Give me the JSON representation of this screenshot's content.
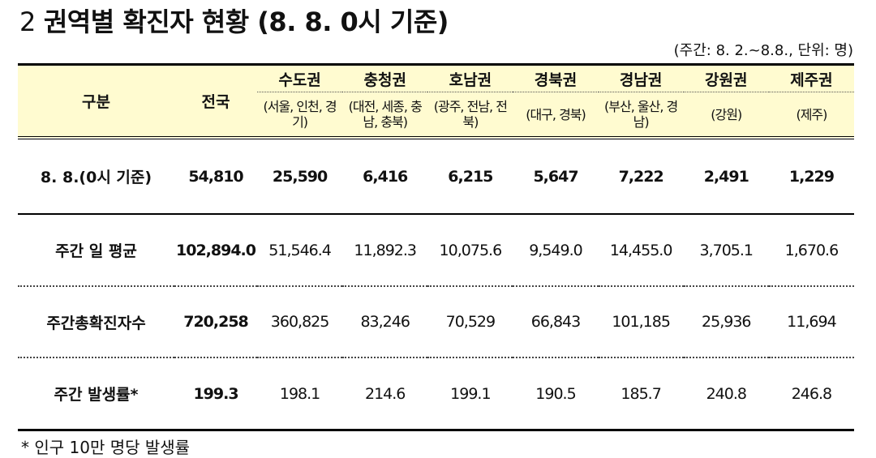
{
  "title": {
    "number": "2",
    "text": "권역별 확진자 현황 (8. 8. 0시 기준)"
  },
  "unit_note": "(주간: 8. 2.~8.8., 단위: 명)",
  "table": {
    "col_label": "구분",
    "col_total": "전국",
    "regions": [
      {
        "name": "수도권",
        "sub": "(서울, 인천, 경기)"
      },
      {
        "name": "충청권",
        "sub": "(대전, 세종, 충남, 충북)"
      },
      {
        "name": "호남권",
        "sub": "(광주, 전남, 전북)"
      },
      {
        "name": "경북권",
        "sub": "(대구, 경북)"
      },
      {
        "name": "경남권",
        "sub": "(부산, 울산, 경남)"
      },
      {
        "name": "강원권",
        "sub": "(강원)"
      },
      {
        "name": "제주권",
        "sub": "(제주)"
      }
    ],
    "rows": [
      {
        "label": "8. 8.(0시 기준)",
        "total": "54,810",
        "values": [
          "25,590",
          "6,416",
          "6,215",
          "5,647",
          "7,222",
          "2,491",
          "1,229"
        ]
      },
      {
        "label": "주간 일 평균",
        "total": "102,894.0",
        "values": [
          "51,546.4",
          "11,892.3",
          "10,075.6",
          "9,549.0",
          "14,455.0",
          "3,705.1",
          "1,670.6"
        ]
      },
      {
        "label": "주간총확진자수",
        "total": "720,258",
        "values": [
          "360,825",
          "83,246",
          "70,529",
          "66,843",
          "101,185",
          "25,936",
          "11,694"
        ]
      },
      {
        "label": "주간 발생률*",
        "total": "199.3",
        "values": [
          "198.1",
          "214.6",
          "199.1",
          "190.5",
          "185.7",
          "240.8",
          "246.8"
        ]
      }
    ]
  },
  "footnote": "* 인구 10만 명당 발생률"
}
